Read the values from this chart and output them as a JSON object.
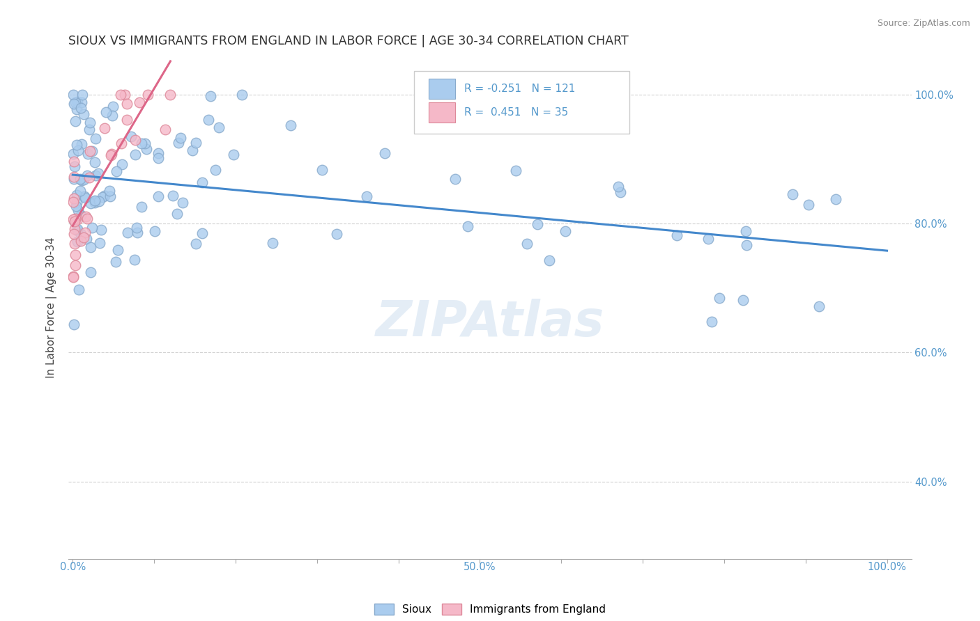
{
  "title": "SIOUX VS IMMIGRANTS FROM ENGLAND IN LABOR FORCE | AGE 30-34 CORRELATION CHART",
  "source_text": "Source: ZipAtlas.com",
  "ylabel": "In Labor Force | Age 30-34",
  "watermark": "ZIPAtlas",
  "sioux_color": "#aaccee",
  "england_color": "#f5b8c8",
  "sioux_edge": "#88aacc",
  "england_edge": "#dd8899",
  "trend_sioux_color": "#4488cc",
  "trend_england_color": "#dd6688",
  "background_color": "#ffffff",
  "grid_color": "#cccccc",
  "title_fontsize": 12.5,
  "axis_label_fontsize": 11,
  "tick_fontsize": 10.5,
  "right_tick_color": "#5599cc",
  "bottom_tick_color": "#5599cc"
}
